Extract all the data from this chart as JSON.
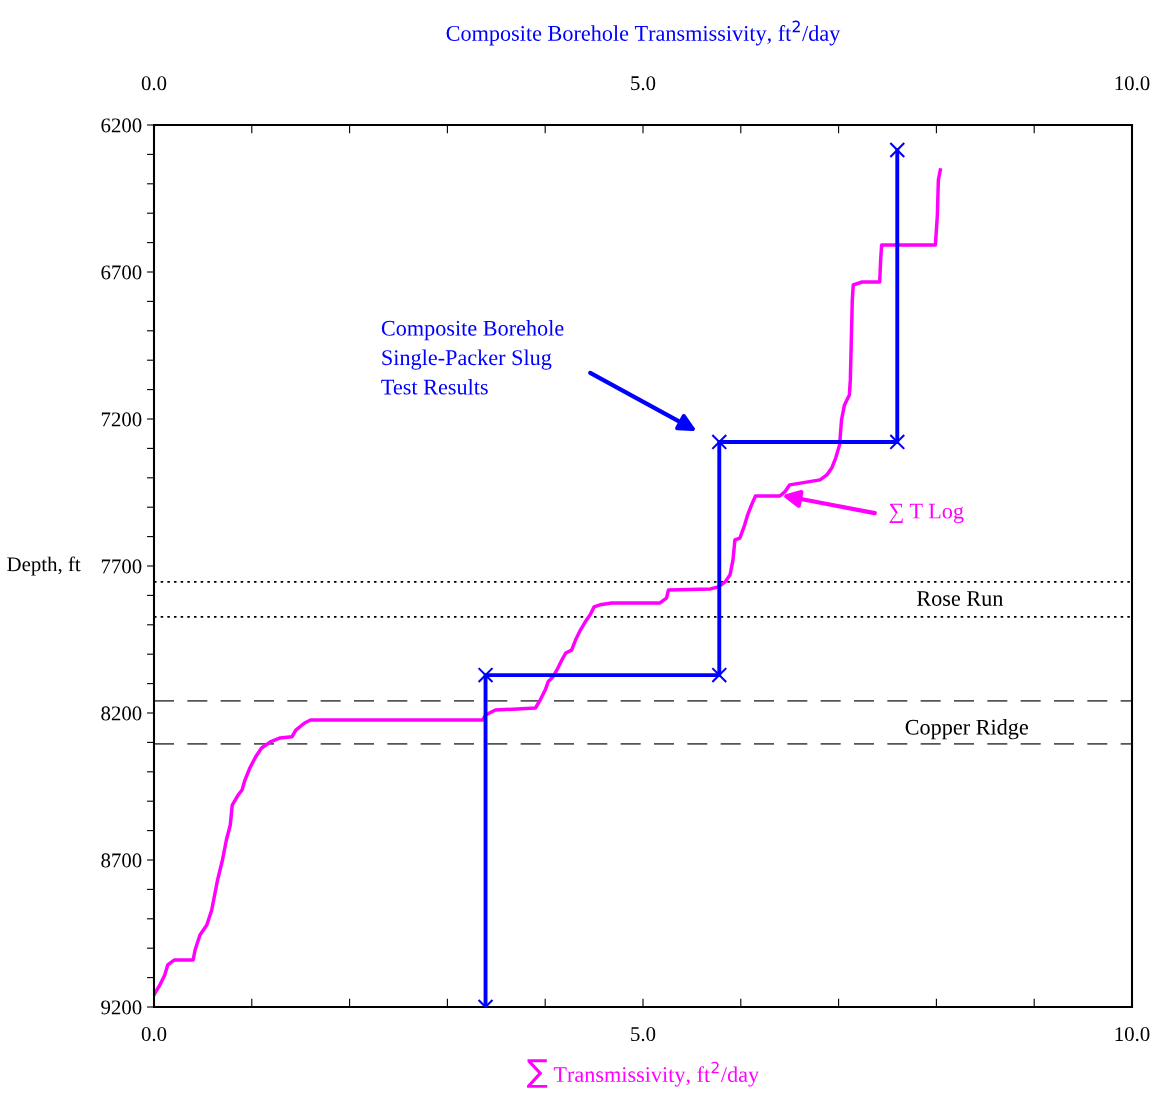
{
  "chart_data": {
    "type": "line",
    "xlabel": "∑ Transmissivity, ft$^{2}$/day",
    "x2label": "Composite Borehole Transmissivity, ft$^{2}$/day",
    "ylabel": "Depth, ft",
    "xlim": [
      0,
      10
    ],
    "x2lim": [
      0,
      10
    ],
    "ylim": [
      9200,
      6200
    ],
    "xticks": [
      {
        "value": 0,
        "label": "0.0"
      },
      {
        "value": 1,
        "label": null
      },
      {
        "value": 2,
        "label": null
      },
      {
        "value": 3,
        "label": null
      },
      {
        "value": 4,
        "label": null
      },
      {
        "value": 5,
        "label": "5.0"
      },
      {
        "value": 6,
        "label": null
      },
      {
        "value": 7,
        "label": null
      },
      {
        "value": 8,
        "label": null
      },
      {
        "value": 9,
        "label": null
      },
      {
        "value": 10,
        "label": "10.0"
      }
    ],
    "x2ticks": [
      {
        "value": 0,
        "label": "0.0"
      },
      {
        "value": 1,
        "label": null
      },
      {
        "value": 2,
        "label": null
      },
      {
        "value": 3,
        "label": null
      },
      {
        "value": 4,
        "label": null
      },
      {
        "value": 5,
        "label": "5.0"
      },
      {
        "value": 6,
        "label": null
      },
      {
        "value": 7,
        "label": null
      },
      {
        "value": 8,
        "label": null
      },
      {
        "value": 9,
        "label": null
      },
      {
        "value": 10,
        "label": "10.0"
      }
    ],
    "yticks": [
      6200,
      {
        "value": 6300,
        "label": null
      },
      {
        "value": 6400,
        "label": null
      },
      {
        "value": 6500,
        "label": null
      },
      {
        "value": 6600,
        "label": null
      },
      6700,
      {
        "value": 6800,
        "label": null
      },
      {
        "value": 6900,
        "label": null
      },
      {
        "value": 7000,
        "label": null
      },
      {
        "value": 7100,
        "label": null
      },
      7200,
      {
        "value": 7300,
        "label": null
      },
      {
        "value": 7400,
        "label": null
      },
      {
        "value": 7500,
        "label": null
      },
      {
        "value": 7600,
        "label": null
      },
      7700,
      {
        "value": 7800,
        "label": null
      },
      {
        "value": 7900,
        "label": null
      },
      {
        "value": 8000,
        "label": null
      },
      {
        "value": 8100,
        "label": null
      },
      8200,
      {
        "value": 8300,
        "label": null
      },
      {
        "value": 8400,
        "label": null
      },
      {
        "value": 8500,
        "label": null
      },
      {
        "value": 8600,
        "label": null
      },
      8700,
      {
        "value": 8800,
        "label": null
      },
      {
        "value": 8900,
        "label": null
      },
      {
        "value": 9000,
        "label": null
      },
      {
        "value": 9100,
        "label": null
      },
      9200
    ],
    "grid": false,
    "legend": false,
    "series": [
      {
        "color": "#ff00ff",
        "marker": "none",
        "x": [
          0,
          0.06,
          0.11,
          0.14,
          0.21,
          0.4,
          0.42,
          0.47,
          0.54,
          0.59,
          0.62,
          0.65,
          0.7,
          0.74,
          0.78,
          0.8,
          0.86,
          0.9,
          0.93,
          0.98,
          1.04,
          1.1,
          1.19,
          1.29,
          1.41,
          1.45,
          1.54,
          1.6,
          3.36,
          3.39,
          3.49,
          3.9,
          3.95,
          4.0,
          4.03,
          4.08,
          4.13,
          4.17,
          4.21,
          4.27,
          4.31,
          4.36,
          4.41,
          4.46,
          4.5,
          4.56,
          4.68,
          5.17,
          5.24,
          5.26,
          5.69,
          5.77,
          5.84,
          5.89,
          5.92,
          5.94,
          5.99,
          6.04,
          6.07,
          6.11,
          6.15,
          6.4,
          6.45,
          6.5,
          6.61,
          6.81,
          6.88,
          6.93,
          6.97,
          7.01,
          7.03,
          7.06,
          7.11,
          7.12,
          7.13,
          7.14,
          7.15,
          7.24,
          7.42,
          7.43,
          7.44,
          7.99,
          8.01,
          8.02,
          8.04
        ],
        "values": [
          9159,
          9125,
          9091,
          9057,
          9040,
          9040,
          9006,
          8955,
          8921,
          8870,
          8819,
          8768,
          8700,
          8632,
          8581,
          8513,
          8479,
          8462,
          8428,
          8387,
          8349,
          8319,
          8298,
          8285,
          8281,
          8258,
          8234,
          8224,
          8224,
          8207,
          8190,
          8183,
          8155,
          8122,
          8094,
          8077,
          8047,
          8020,
          7996,
          7986,
          7952,
          7918,
          7890,
          7866,
          7839,
          7832,
          7826,
          7826,
          7809,
          7782,
          7778,
          7771,
          7754,
          7730,
          7679,
          7611,
          7605,
          7560,
          7526,
          7492,
          7462,
          7462,
          7448,
          7424,
          7418,
          7407,
          7390,
          7367,
          7333,
          7288,
          7203,
          7152,
          7118,
          7067,
          6931,
          6795,
          6744,
          6734,
          6734,
          6659,
          6608,
          6608,
          6506,
          6387,
          6353
        ]
      },
      {
        "color": "#0000ff",
        "marker": "cross",
        "axis": "x2",
        "x": [
          3.39,
          3.39,
          5.78,
          5.78,
          7.6,
          7.6
        ],
        "values": [
          9200,
          8071,
          8071,
          7278,
          7278,
          6285
        ]
      }
    ],
    "ref_lines": [
      {
        "axis": "y",
        "value": 7754,
        "line_style": "dotted",
        "color": "#000000"
      },
      {
        "axis": "y",
        "value": 7873,
        "line_style": "dotted",
        "color": "#000000"
      },
      {
        "axis": "y",
        "value": 8159,
        "line_style": "dashed",
        "color": "#555555"
      },
      {
        "axis": "y",
        "value": 8305,
        "line_style": "dashed",
        "color": "#555555"
      }
    ],
    "annotations": [
      "Composite Borehole\nSingle-Packer Slug\nTest Results",
      {
        "text": "∑ T Log",
        "x": 6.42,
        "y": 7460
      },
      "Rose Run",
      "Copper Ridge"
    ]
  }
}
